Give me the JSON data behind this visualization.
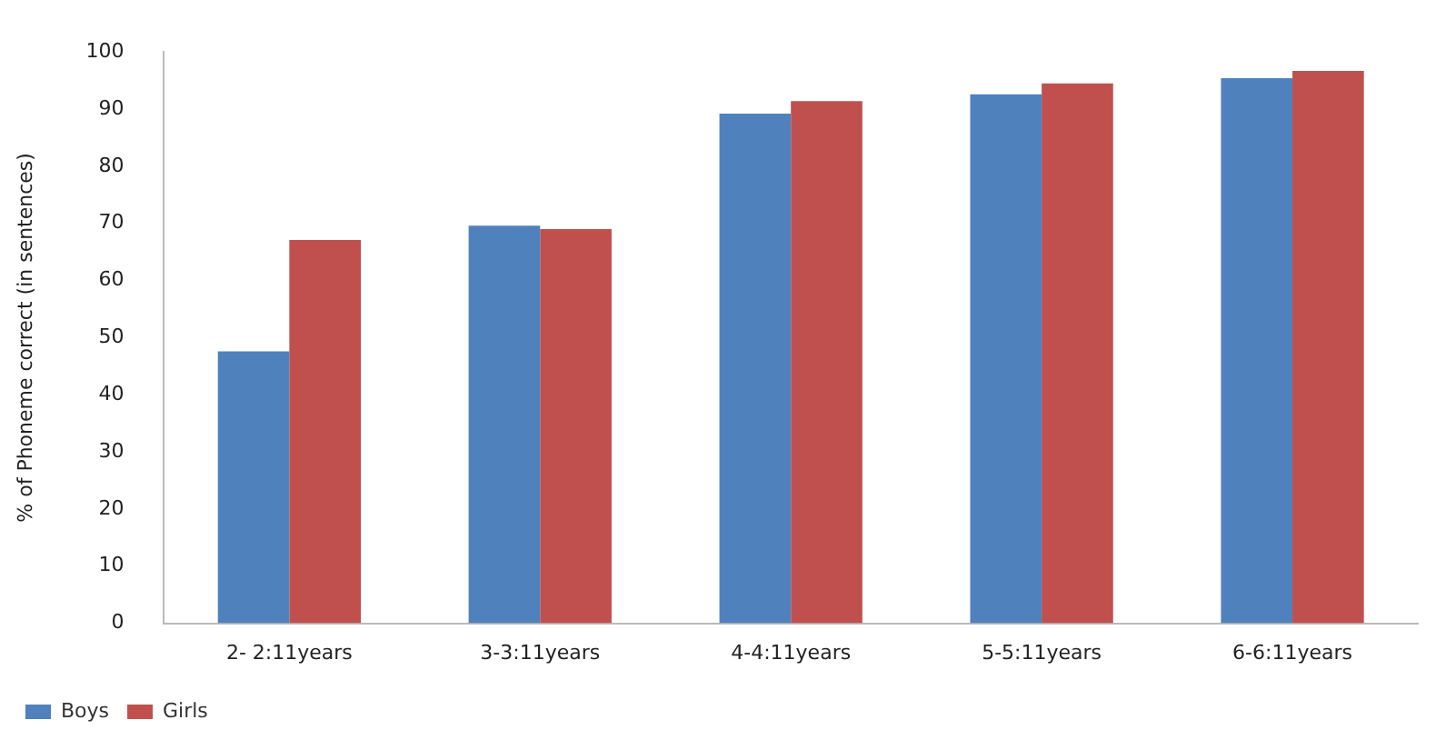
{
  "chart_data": {
    "type": "bar",
    "ylabel": "% of Phoneme correct (in sentences)",
    "categories": [
      "2- 2:11years",
      "3-3:11years",
      "4-4:11years",
      "5-5:11years",
      "6-6:11years"
    ],
    "series": [
      {
        "name": "Boys",
        "color": "#4f81bd",
        "values": [
          47.6,
          69.6,
          89.2,
          92.6,
          95.4
        ]
      },
      {
        "name": "Girls",
        "color": "#c0504d",
        "values": [
          67.1,
          69.0,
          91.4,
          94.5,
          96.7
        ]
      }
    ],
    "ylim": [
      0,
      100
    ],
    "yticks": [
      0,
      10,
      20,
      30,
      40,
      50,
      60,
      70,
      80,
      90,
      100
    ],
    "grid": false,
    "legend": "bottom left"
  }
}
